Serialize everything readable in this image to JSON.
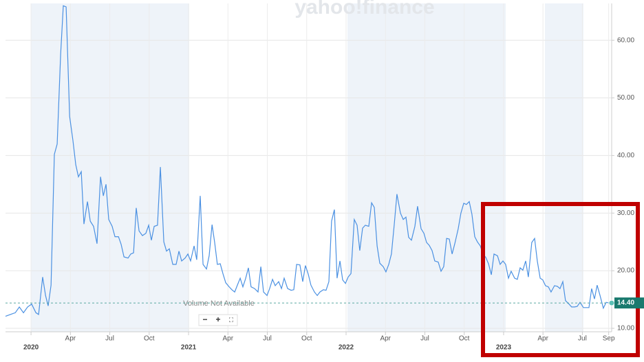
{
  "chart_data": {
    "type": "line",
    "watermark": "yahoo!finance",
    "note": "Volume Not Available",
    "controls": [
      "−",
      "+",
      "⛶"
    ],
    "x": [
      2019.838,
      2019.869,
      2019.9,
      2019.926,
      2019.952,
      2019.978,
      2020.004,
      2020.031,
      2020.048,
      2020.074,
      2020.092,
      2020.109,
      2020.127,
      2020.148,
      2020.166,
      2020.188,
      2020.205,
      2020.223,
      2020.245,
      2020.266,
      2020.284,
      2020.301,
      2020.319,
      2020.336,
      2020.358,
      2020.376,
      2020.397,
      2020.419,
      2020.441,
      2020.459,
      2020.476,
      2020.493,
      2020.515,
      2020.533,
      2020.555,
      2020.572,
      2020.59,
      2020.616,
      2020.633,
      2020.651,
      2020.668,
      2020.686,
      2020.707,
      2020.729,
      2020.747,
      2020.764,
      2020.782,
      2020.803,
      2020.821,
      2020.843,
      2020.86,
      2020.878,
      2020.9,
      2020.921,
      2020.939,
      2020.956,
      2020.978,
      2020.996,
      2021.013,
      2021.035,
      2021.052,
      2021.074,
      2021.092,
      2021.114,
      2021.131,
      2021.149,
      2021.166,
      2021.183,
      2021.201,
      2021.218,
      2021.236,
      2021.258,
      2021.275,
      2021.293,
      2021.31,
      2021.328,
      2021.345,
      2021.362,
      2021.38,
      2021.397,
      2021.419,
      2021.441,
      2021.459,
      2021.476,
      2021.498,
      2021.515,
      2021.533,
      2021.55,
      2021.572,
      2021.59,
      2021.607,
      2021.629,
      2021.651,
      2021.668,
      2021.686,
      2021.707,
      2021.725,
      2021.742,
      2021.76,
      2021.777,
      2021.799,
      2021.817,
      2021.834,
      2021.856,
      2021.873,
      2021.891,
      2021.908,
      2021.926,
      2021.943,
      2021.961,
      2021.978,
      2021.996,
      2022.013,
      2022.031,
      2022.052,
      2022.07,
      2022.087,
      2022.105,
      2022.122,
      2022.144,
      2022.162,
      2022.179,
      2022.197,
      2022.214,
      2022.236,
      2022.253,
      2022.271,
      2022.288,
      2022.306,
      2022.323,
      2022.345,
      2022.363,
      2022.38,
      2022.397,
      2022.415,
      2022.437,
      2022.454,
      2022.476,
      2022.494,
      2022.511,
      2022.528,
      2022.546,
      2022.563,
      2022.585,
      2022.603,
      2022.62,
      2022.638,
      2022.655,
      2022.673,
      2022.69,
      2022.712,
      2022.729,
      2022.747,
      2022.764,
      2022.782,
      2022.799,
      2022.817,
      2022.834,
      2022.852,
      2022.869,
      2022.887,
      2022.904,
      2022.922,
      2022.939,
      2022.961,
      2022.978,
      2022.996,
      2023.013,
      2023.031,
      2023.048,
      2023.07,
      2023.087,
      2023.105,
      2023.122,
      2023.14,
      2023.157,
      2023.179,
      2023.197,
      2023.214,
      2023.232,
      2023.249,
      2023.266,
      2023.284,
      2023.301,
      2023.323,
      2023.341,
      2023.358,
      2023.376,
      2023.393,
      2023.415,
      2023.432,
      2023.45,
      2023.467,
      2023.485,
      2023.507,
      2023.524,
      2023.542,
      2023.559,
      2023.577,
      2023.594,
      2023.612,
      2023.633,
      2023.651,
      2023.668
    ],
    "series": [
      {
        "color": "#4a90e2",
        "values": [
          12.1,
          12.4,
          12.7,
          13.7,
          12.7,
          13.7,
          14.2,
          12.7,
          12.4,
          18.9,
          15.7,
          13.9,
          17.5,
          40.2,
          42,
          57.5,
          66,
          65.8,
          46.8,
          42.6,
          38.4,
          36.3,
          37.2,
          28.1,
          32,
          28.6,
          27.7,
          24.7,
          36.3,
          33,
          35,
          28.9,
          27.7,
          25.9,
          25.9,
          24.6,
          22.4,
          22.2,
          22.9,
          23.1,
          30.9,
          26.9,
          26.1,
          26.5,
          27.9,
          25.3,
          27.7,
          27.9,
          38,
          25,
          23.4,
          23.8,
          21.1,
          21.1,
          23.4,
          21.7,
          22.2,
          22.9,
          21.7,
          24.3,
          21.9,
          33,
          21.1,
          20.3,
          22.6,
          28,
          24.9,
          21.1,
          21.2,
          19.5,
          17.9,
          17.2,
          16.7,
          16.3,
          17.5,
          18.7,
          17.2,
          18.6,
          20.5,
          17.2,
          16.9,
          16.3,
          20.7,
          16.3,
          15.7,
          16.9,
          18.5,
          17.4,
          18.1,
          16.9,
          18.7,
          16.9,
          16.6,
          16.7,
          21.1,
          21,
          18.1,
          20.9,
          19.4,
          17.5,
          16.3,
          15.7,
          16.3,
          16.7,
          16.6,
          18.1,
          28.6,
          30.6,
          18.7,
          21.7,
          18.4,
          17.8,
          18.9,
          19.5,
          28.9,
          27.9,
          23.5,
          27.4,
          27.9,
          27.7,
          31.8,
          31,
          24.3,
          21.3,
          20.7,
          19.8,
          21.1,
          22.9,
          28,
          33.3,
          30,
          28.9,
          29.3,
          25.8,
          25.3,
          27.7,
          31.2,
          27.3,
          26.5,
          24.9,
          24.4,
          23.5,
          21.7,
          21.5,
          19.9,
          20.7,
          25.6,
          25.5,
          22.9,
          24.7,
          27.3,
          30,
          31.7,
          31.5,
          32,
          29.8,
          25.9,
          25,
          24.3,
          22.9,
          22.3,
          21.2,
          19.3,
          22.9,
          22.6,
          21.1,
          21.7,
          21.1,
          18.7,
          19.9,
          18.7,
          18.5,
          20.5,
          20.1,
          21.7,
          18.9,
          24.9,
          25.6,
          21.7,
          18.7,
          18.4,
          17.4,
          17.2,
          16.3,
          17.4,
          17.3,
          16.9,
          18.1,
          14.8,
          14.2,
          13.7,
          13.7,
          13.8,
          14.5,
          13.6,
          13.6,
          13.6,
          16.9,
          15.1,
          17.5,
          15.7,
          13.5,
          14.5,
          14.4
        ]
      }
    ],
    "current": {
      "value": 14.4,
      "label": "14.40",
      "color": "#1a7a6e"
    },
    "xlim": [
      2019.838,
      2023.686
    ],
    "ylim": [
      9.4,
      66.4
    ],
    "xticks": [
      {
        "value": 2020,
        "label": "2020"
      },
      {
        "value": 2020.25,
        "label": "Apr"
      },
      {
        "value": 2020.5,
        "label": "Jul"
      },
      {
        "value": 2020.75,
        "label": "Oct"
      },
      {
        "value": 2021,
        "label": "2021"
      },
      {
        "value": 2021.25,
        "label": "Apr"
      },
      {
        "value": 2021.5,
        "label": "Jul"
      },
      {
        "value": 2021.75,
        "label": "Oct"
      },
      {
        "value": 2022,
        "label": "2022"
      },
      {
        "value": 2022.25,
        "label": "Apr"
      },
      {
        "value": 2022.5,
        "label": "Jul"
      },
      {
        "value": 2022.75,
        "label": "Oct"
      },
      {
        "value": 2023,
        "label": "2023"
      },
      {
        "value": 2023.25,
        "label": "Apr"
      },
      {
        "value": 2023.5,
        "label": "Jul"
      },
      {
        "value": 2023.667,
        "label": "Sep"
      }
    ],
    "yticks": [
      {
        "value": 10,
        "label": "10.00"
      },
      {
        "value": 20,
        "label": "20.00"
      },
      {
        "value": 30,
        "label": "30.00"
      },
      {
        "value": 40,
        "label": "40.00"
      },
      {
        "value": 50,
        "label": "50.00"
      },
      {
        "value": 60,
        "label": "60.00"
      }
    ],
    "grid": true
  }
}
